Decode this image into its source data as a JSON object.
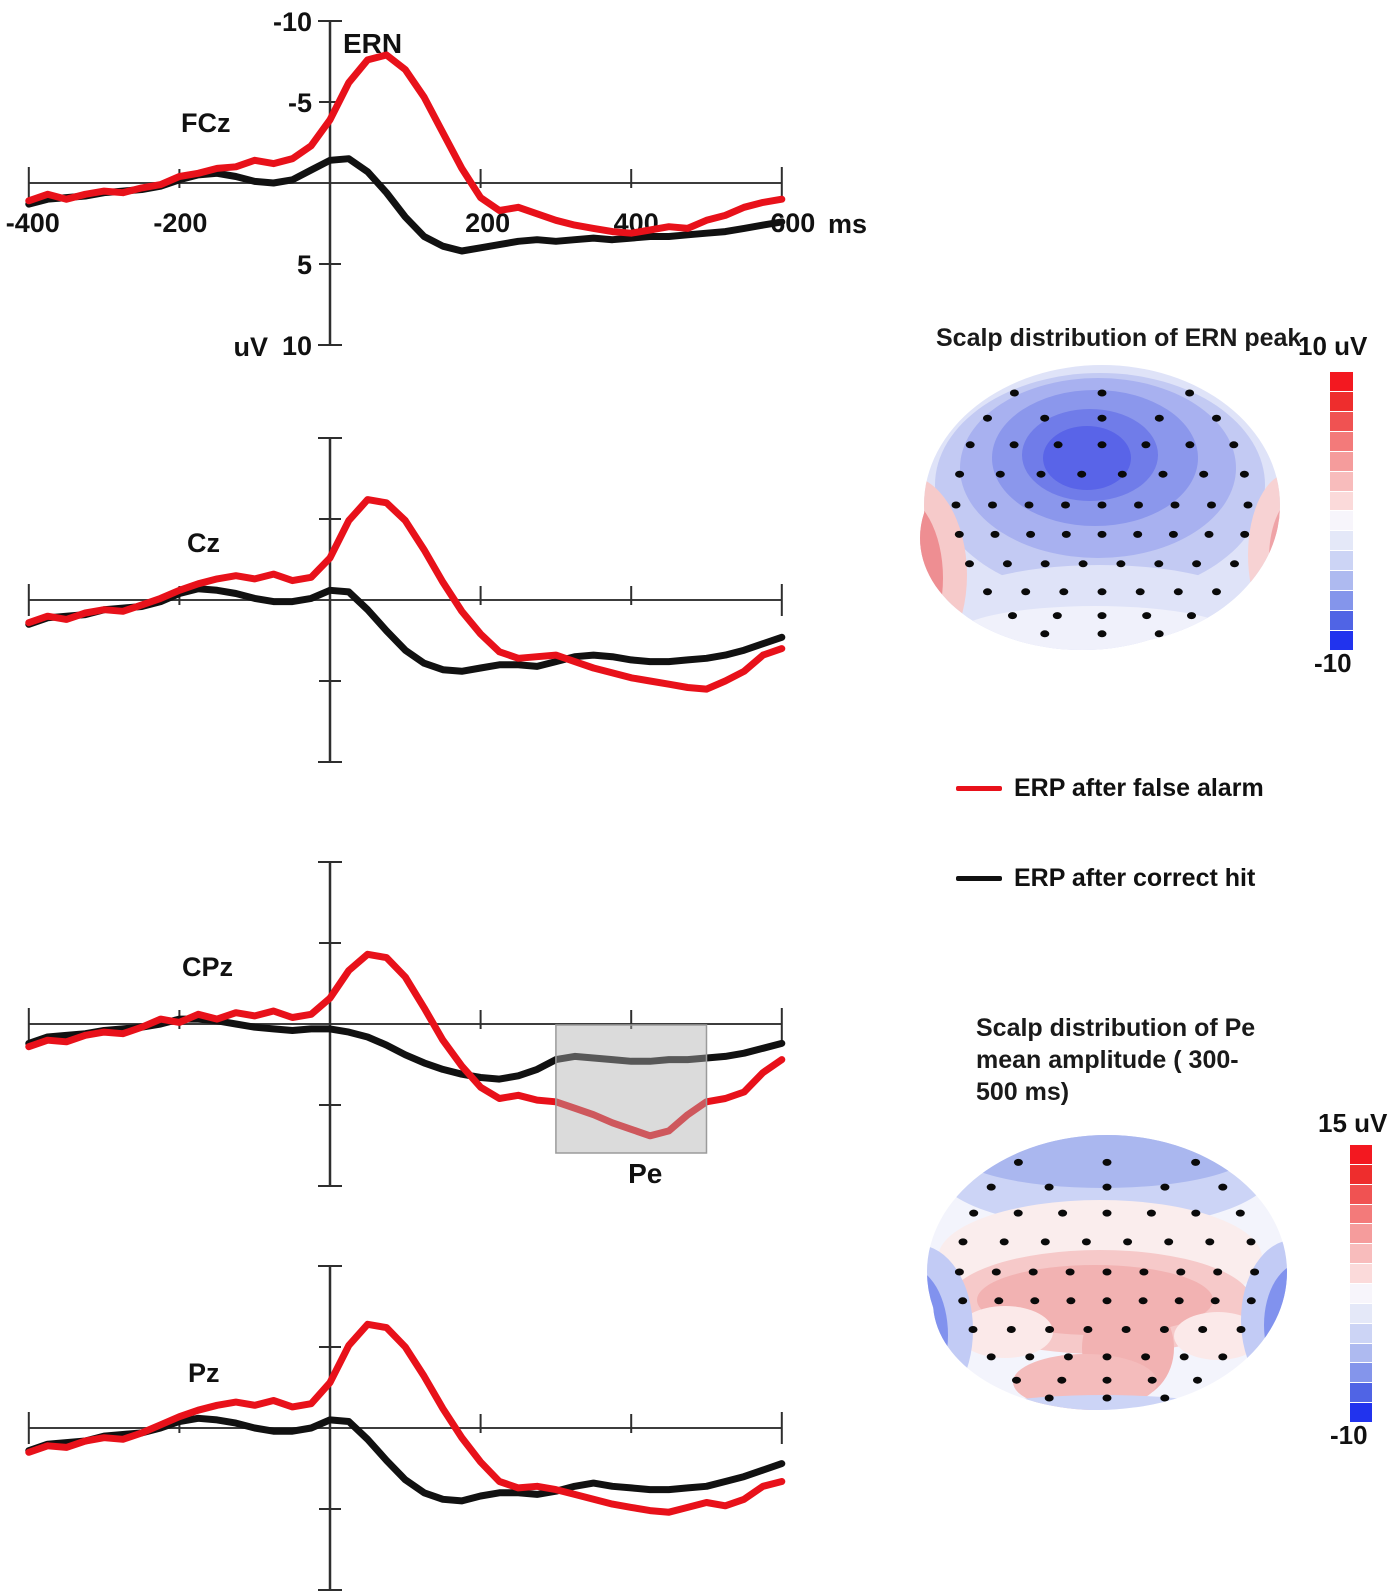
{
  "figure": {
    "background": "#ffffff",
    "electrode_dot_color": "#0a0a0a"
  },
  "legend": {
    "items": [
      {
        "label": "ERP after false alarm",
        "color": "#e8111a"
      },
      {
        "label": "ERP after correct hit",
        "color": "#111111"
      }
    ]
  },
  "scalp_maps": [
    {
      "title": "Scalp distribution of ERN peak",
      "type": "heatmap",
      "colorbar": {
        "top_label": "10 uV",
        "bottom_label": "-10"
      },
      "pattern": "negative (blue) maximum over fronto-central sites, red at lateral temporal edges"
    },
    {
      "title": "Scalp distribution of Pe mean amplitude ( 300-500 ms)",
      "title_lines": [
        "Scalp distribution of Pe",
        "mean amplitude ( 300-",
        "500 ms)"
      ],
      "type": "heatmap",
      "colorbar": {
        "top_label": "15 uV",
        "bottom_label": "-10"
      },
      "pattern": "positive (red) maximum over centro-parietal sites, blue at posterior-lateral edges"
    }
  ],
  "colorbar_colors": [
    "#f31820",
    "#ee2d2d",
    "#f05252",
    "#f37a7a",
    "#f59c9c",
    "#f8bcbc",
    "#fbdada",
    "#f7f5fb",
    "#e4e8f8",
    "#ccd4f5",
    "#aebaf0",
    "#8495eb",
    "#5064e5",
    "#2133ee"
  ],
  "chart_data": [
    {
      "type": "line",
      "electrode": "FCz",
      "peak_label": "ERN",
      "x_axis_unit": "ms",
      "y_axis_unit": "uV",
      "xlim": [
        -400,
        600
      ],
      "ylim": [
        -10,
        10
      ],
      "negative_up": true,
      "grid": false,
      "x_ticks": [
        -400,
        -200,
        200,
        400,
        600
      ],
      "x_tick_labels": [
        "-400",
        "-200",
        "200",
        "400",
        "600"
      ],
      "y_ticks": [
        -10,
        -5,
        5,
        10
      ],
      "y_tick_labels": [
        "-10",
        "-5",
        "5",
        "10"
      ],
      "x": [
        -400,
        -375,
        -350,
        -325,
        -300,
        -275,
        -250,
        -225,
        -200,
        -175,
        -150,
        -125,
        -100,
        -75,
        -50,
        -25,
        0,
        25,
        50,
        75,
        100,
        125,
        150,
        175,
        200,
        225,
        250,
        275,
        300,
        325,
        350,
        375,
        400,
        425,
        450,
        475,
        500,
        525,
        550,
        575,
        600
      ],
      "series": [
        {
          "name": "ERP after false alarm",
          "color": "#e8111a",
          "values": [
            1.1,
            0.7,
            1.0,
            0.7,
            0.5,
            0.6,
            0.3,
            0.1,
            -0.4,
            -0.6,
            -0.9,
            -1.0,
            -1.4,
            -1.2,
            -1.5,
            -2.3,
            -3.9,
            -6.2,
            -7.6,
            -7.9,
            -7.0,
            -5.3,
            -3.1,
            -0.9,
            0.9,
            1.7,
            1.5,
            1.9,
            2.3,
            2.6,
            2.8,
            3.0,
            3.1,
            2.9,
            2.7,
            2.8,
            2.3,
            2.0,
            1.5,
            1.2,
            1.0
          ]
        },
        {
          "name": "ERP after correct hit",
          "color": "#111111",
          "values": [
            1.3,
            1.0,
            0.9,
            0.8,
            0.6,
            0.5,
            0.4,
            0.2,
            -0.2,
            -0.5,
            -0.6,
            -0.4,
            -0.1,
            0.0,
            -0.2,
            -0.8,
            -1.4,
            -1.5,
            -0.7,
            0.6,
            2.1,
            3.3,
            3.9,
            4.2,
            4.0,
            3.8,
            3.6,
            3.5,
            3.6,
            3.5,
            3.4,
            3.5,
            3.4,
            3.3,
            3.3,
            3.2,
            3.1,
            3.0,
            2.8,
            2.6,
            2.4
          ]
        }
      ]
    },
    {
      "type": "line",
      "electrode": "Cz",
      "x_axis_unit": "ms",
      "y_axis_unit": "uV",
      "xlim": [
        -400,
        600
      ],
      "ylim": [
        -10,
        10
      ],
      "negative_up": true,
      "grid": false,
      "x_ticks": [
        -400,
        -200,
        200,
        400,
        600
      ],
      "x_tick_labels": [],
      "y_ticks": [
        -10,
        -5,
        5,
        10
      ],
      "y_tick_labels": [],
      "x": [
        -400,
        -375,
        -350,
        -325,
        -300,
        -275,
        -250,
        -225,
        -200,
        -175,
        -150,
        -125,
        -100,
        -75,
        -50,
        -25,
        0,
        25,
        50,
        75,
        100,
        125,
        150,
        175,
        200,
        225,
        250,
        275,
        300,
        325,
        350,
        375,
        400,
        425,
        450,
        475,
        500,
        525,
        550,
        575,
        600
      ],
      "series": [
        {
          "name": "ERP after false alarm",
          "color": "#e8111a",
          "values": [
            1.4,
            1.0,
            1.2,
            0.8,
            0.6,
            0.7,
            0.3,
            -0.1,
            -0.6,
            -1.0,
            -1.3,
            -1.5,
            -1.3,
            -1.6,
            -1.2,
            -1.4,
            -2.6,
            -4.9,
            -6.2,
            -6.0,
            -4.9,
            -3.1,
            -1.1,
            0.7,
            2.1,
            3.2,
            3.6,
            3.5,
            3.4,
            3.8,
            4.2,
            4.5,
            4.8,
            5.0,
            5.2,
            5.4,
            5.5,
            5.0,
            4.4,
            3.4,
            3.0
          ]
        },
        {
          "name": "ERP after correct hit",
          "color": "#111111",
          "values": [
            1.5,
            1.1,
            1.0,
            0.9,
            0.6,
            0.5,
            0.4,
            0.1,
            -0.4,
            -0.7,
            -0.6,
            -0.4,
            -0.1,
            0.1,
            0.1,
            -0.1,
            -0.6,
            -0.5,
            0.6,
            1.9,
            3.1,
            3.9,
            4.3,
            4.4,
            4.2,
            4.0,
            4.0,
            4.1,
            3.8,
            3.5,
            3.4,
            3.5,
            3.7,
            3.8,
            3.8,
            3.7,
            3.6,
            3.4,
            3.1,
            2.7,
            2.3
          ]
        }
      ]
    },
    {
      "type": "line",
      "electrode": "CPz",
      "x_axis_unit": "ms",
      "y_axis_unit": "uV",
      "xlim": [
        -400,
        600
      ],
      "ylim": [
        -10,
        10
      ],
      "negative_up": true,
      "grid": false,
      "x_ticks": [
        -400,
        -200,
        200,
        400,
        600
      ],
      "x_tick_labels": [],
      "y_ticks": [
        -10,
        -5,
        5,
        10
      ],
      "y_tick_labels": [],
      "highlight": {
        "label": "Pe",
        "from_ms": 300,
        "to_ms": 500
      },
      "x": [
        -400,
        -375,
        -350,
        -325,
        -300,
        -275,
        -250,
        -225,
        -200,
        -175,
        -150,
        -125,
        -100,
        -75,
        -50,
        -25,
        0,
        25,
        50,
        75,
        100,
        125,
        150,
        175,
        200,
        225,
        250,
        275,
        300,
        325,
        350,
        375,
        400,
        425,
        450,
        475,
        500,
        525,
        550,
        575,
        600
      ],
      "series": [
        {
          "name": "ERP after false alarm",
          "color": "#e8111a",
          "values": [
            1.4,
            1.0,
            1.1,
            0.7,
            0.5,
            0.6,
            0.2,
            -0.3,
            -0.1,
            -0.6,
            -0.3,
            -0.7,
            -0.5,
            -0.8,
            -0.4,
            -0.6,
            -1.6,
            -3.3,
            -4.3,
            -4.1,
            -2.9,
            -1.0,
            1.0,
            2.6,
            3.9,
            4.6,
            4.4,
            4.7,
            4.8,
            5.2,
            5.6,
            6.1,
            6.5,
            6.9,
            6.6,
            5.6,
            4.8,
            4.6,
            4.2,
            3.0,
            2.2
          ]
        },
        {
          "name": "ERP after correct hit",
          "color": "#111111",
          "values": [
            1.2,
            0.8,
            0.7,
            0.6,
            0.4,
            0.3,
            0.2,
            0.0,
            -0.3,
            -0.3,
            -0.2,
            0.0,
            0.2,
            0.3,
            0.4,
            0.3,
            0.3,
            0.5,
            0.8,
            1.3,
            1.9,
            2.4,
            2.8,
            3.1,
            3.3,
            3.4,
            3.2,
            2.8,
            2.2,
            2.0,
            2.1,
            2.2,
            2.3,
            2.3,
            2.2,
            2.2,
            2.1,
            2.0,
            1.8,
            1.5,
            1.2
          ]
        }
      ]
    },
    {
      "type": "line",
      "electrode": "Pz",
      "x_axis_unit": "ms",
      "y_axis_unit": "uV",
      "xlim": [
        -400,
        600
      ],
      "ylim": [
        -10,
        10
      ],
      "negative_up": true,
      "grid": false,
      "x_ticks": [
        -400,
        -200,
        200,
        400,
        600
      ],
      "x_tick_labels": [],
      "y_ticks": [
        -10,
        -5,
        5,
        10
      ],
      "y_tick_labels": [],
      "x": [
        -400,
        -375,
        -350,
        -325,
        -300,
        -275,
        -250,
        -225,
        -200,
        -175,
        -150,
        -125,
        -100,
        -75,
        -50,
        -25,
        0,
        25,
        50,
        75,
        100,
        125,
        150,
        175,
        200,
        225,
        250,
        275,
        300,
        325,
        350,
        375,
        400,
        425,
        450,
        475,
        500,
        525,
        550,
        575,
        600
      ],
      "series": [
        {
          "name": "ERP after false alarm",
          "color": "#e8111a",
          "values": [
            1.5,
            1.1,
            1.2,
            0.8,
            0.6,
            0.7,
            0.3,
            -0.2,
            -0.7,
            -1.1,
            -1.4,
            -1.6,
            -1.4,
            -1.7,
            -1.3,
            -1.5,
            -2.8,
            -5.1,
            -6.4,
            -6.2,
            -5.0,
            -3.2,
            -1.2,
            0.6,
            2.1,
            3.3,
            3.7,
            3.6,
            3.8,
            4.1,
            4.4,
            4.7,
            4.9,
            5.1,
            5.2,
            4.9,
            4.6,
            4.8,
            4.4,
            3.6,
            3.3
          ]
        },
        {
          "name": "ERP after correct hit",
          "color": "#111111",
          "values": [
            1.4,
            1.0,
            0.9,
            0.8,
            0.5,
            0.4,
            0.3,
            0.0,
            -0.4,
            -0.6,
            -0.5,
            -0.3,
            0.0,
            0.2,
            0.2,
            0.0,
            -0.5,
            -0.4,
            0.7,
            2.0,
            3.2,
            4.0,
            4.4,
            4.5,
            4.2,
            4.0,
            4.0,
            4.1,
            3.9,
            3.6,
            3.4,
            3.6,
            3.7,
            3.8,
            3.8,
            3.7,
            3.6,
            3.3,
            3.0,
            2.6,
            2.2
          ]
        }
      ]
    }
  ]
}
